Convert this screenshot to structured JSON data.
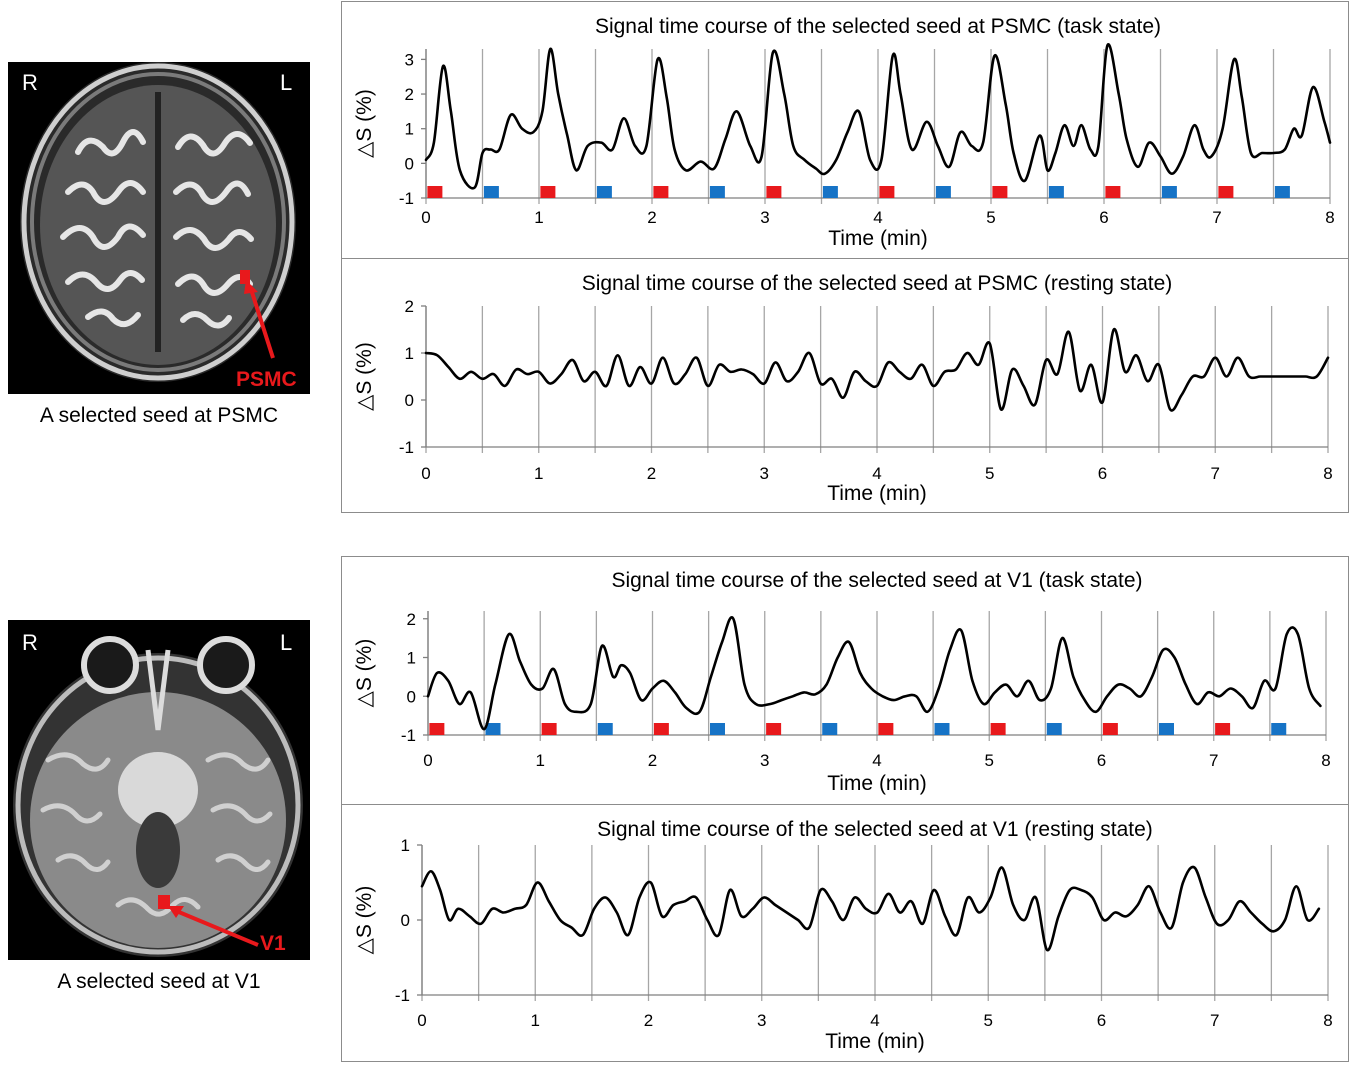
{
  "seeds": [
    {
      "caption": "A selected seed at PSMC",
      "seed_label": "PSMC",
      "orient_left": "R",
      "orient_right": "L",
      "seed_color": "#e8191c"
    },
    {
      "caption": "A selected seed at V1",
      "seed_label": "V1",
      "orient_left": "R",
      "orient_right": "L",
      "seed_color": "#e8191c"
    }
  ],
  "colors": {
    "line": "#000000",
    "grid": "#a6a6a6",
    "block_red": "#e8191c",
    "block_blue": "#1673c6",
    "frame": "#8c8c8c"
  },
  "chart_data": [
    {
      "type": "line",
      "title": "Signal time course of the selected seed at PSMC (task state)",
      "xlabel": "Time (min)",
      "ylabel": "△S (%)",
      "xlim": [
        0,
        8
      ],
      "ylim": [
        -1,
        3.3
      ],
      "xticks": [
        0,
        1,
        2,
        3,
        4,
        5,
        6,
        7,
        8
      ],
      "yticks": [
        -1,
        0,
        1,
        2,
        3
      ],
      "gridlines_x": [
        0,
        0.5,
        1,
        1.5,
        2,
        2.5,
        3,
        3.5,
        4,
        4.5,
        5,
        5.5,
        6,
        6.5,
        7,
        7.5,
        8
      ],
      "blocks": [
        {
          "t": 0.03,
          "cond": "red"
        },
        {
          "t": 0.53,
          "cond": "blue"
        },
        {
          "t": 1.03,
          "cond": "red"
        },
        {
          "t": 1.53,
          "cond": "blue"
        },
        {
          "t": 2.03,
          "cond": "red"
        },
        {
          "t": 2.53,
          "cond": "blue"
        },
        {
          "t": 3.03,
          "cond": "red"
        },
        {
          "t": 3.53,
          "cond": "blue"
        },
        {
          "t": 4.03,
          "cond": "red"
        },
        {
          "t": 4.53,
          "cond": "blue"
        },
        {
          "t": 5.03,
          "cond": "red"
        },
        {
          "t": 5.53,
          "cond": "blue"
        },
        {
          "t": 6.03,
          "cond": "red"
        },
        {
          "t": 6.53,
          "cond": "blue"
        },
        {
          "t": 7.03,
          "cond": "red"
        },
        {
          "t": 7.53,
          "cond": "blue"
        }
      ],
      "series": [
        {
          "name": "PSMC task",
          "x": [
            0,
            0.07,
            0.15,
            0.22,
            0.3,
            0.43,
            0.5,
            0.57,
            0.65,
            0.75,
            0.85,
            0.95,
            1.03,
            1.1,
            1.17,
            1.25,
            1.33,
            1.43,
            1.55,
            1.65,
            1.75,
            1.85,
            1.95,
            2.05,
            2.13,
            2.2,
            2.3,
            2.43,
            2.55,
            2.65,
            2.75,
            2.87,
            2.97,
            3.07,
            3.17,
            3.25,
            3.35,
            3.45,
            3.53,
            3.63,
            3.73,
            3.83,
            3.93,
            4.03,
            4.13,
            4.2,
            4.3,
            4.43,
            4.53,
            4.63,
            4.73,
            4.83,
            4.93,
            5.03,
            5.13,
            5.2,
            5.3,
            5.43,
            5.5,
            5.57,
            5.65,
            5.73,
            5.8,
            5.88,
            5.95,
            6.03,
            6.13,
            6.2,
            6.3,
            6.4,
            6.5,
            6.6,
            6.7,
            6.8,
            6.88,
            6.95,
            7.05,
            7.15,
            7.22,
            7.3,
            7.4,
            7.5,
            7.6,
            7.68,
            7.75,
            7.85,
            7.95,
            8.0
          ],
          "y": [
            0.1,
            0.6,
            2.8,
            1.5,
            -0.2,
            -0.7,
            0.3,
            0.4,
            0.4,
            1.4,
            1.0,
            0.9,
            1.5,
            3.3,
            2.0,
            0.8,
            -0.2,
            0.5,
            0.6,
            0.4,
            1.3,
            0.5,
            0.5,
            3.0,
            1.9,
            0.4,
            -0.2,
            0.05,
            -0.15,
            0.7,
            1.5,
            0.5,
            0.2,
            3.2,
            2.0,
            0.5,
            0.1,
            -0.15,
            -0.3,
            0.1,
            0.9,
            1.5,
            0.1,
            0.1,
            3.1,
            2.0,
            0.4,
            1.2,
            0.5,
            -0.1,
            0.9,
            0.5,
            0.6,
            3.1,
            1.7,
            0.3,
            -0.5,
            0.8,
            -0.2,
            0.3,
            1.1,
            0.5,
            1.1,
            0.4,
            0.5,
            3.4,
            2.0,
            0.7,
            -0.1,
            0.6,
            0.2,
            -0.3,
            0.2,
            1.1,
            0.4,
            0.2,
            1.0,
            3.0,
            1.9,
            0.3,
            0.3,
            0.3,
            0.4,
            1.0,
            0.8,
            2.2,
            1.2,
            0.6
          ]
        }
      ]
    },
    {
      "type": "line",
      "title": "Signal time course of the selected seed at PSMC (resting state)",
      "xlabel": "Time (min)",
      "ylabel": "△S (%)",
      "xlim": [
        0,
        8
      ],
      "ylim": [
        -1,
        2
      ],
      "xticks": [
        0,
        1,
        2,
        3,
        4,
        5,
        6,
        7,
        8
      ],
      "yticks": [
        -1,
        0,
        1,
        2
      ],
      "gridlines_x": [
        0,
        0.5,
        1,
        1.5,
        2,
        2.5,
        3,
        3.5,
        4,
        4.5,
        5,
        5.5,
        6,
        6.5,
        7,
        7.5,
        8
      ],
      "blocks": [],
      "series": [
        {
          "name": "PSMC rest",
          "x": [
            0,
            0.1,
            0.2,
            0.3,
            0.4,
            0.5,
            0.6,
            0.7,
            0.8,
            0.9,
            1.0,
            1.1,
            1.2,
            1.3,
            1.4,
            1.5,
            1.6,
            1.7,
            1.8,
            1.9,
            2.0,
            2.1,
            2.2,
            2.3,
            2.4,
            2.5,
            2.6,
            2.7,
            2.8,
            2.9,
            3.0,
            3.1,
            3.2,
            3.3,
            3.4,
            3.5,
            3.6,
            3.7,
            3.8,
            3.9,
            4.0,
            4.1,
            4.2,
            4.3,
            4.4,
            4.5,
            4.6,
            4.7,
            4.8,
            4.9,
            5.0,
            5.1,
            5.2,
            5.3,
            5.4,
            5.5,
            5.6,
            5.7,
            5.8,
            5.9,
            6.0,
            6.1,
            6.2,
            6.3,
            6.4,
            6.5,
            6.6,
            6.7,
            6.8,
            6.9,
            7.0,
            7.1,
            7.2,
            7.3,
            7.4,
            7.5,
            7.6,
            7.7,
            7.8,
            7.9,
            8.0
          ],
          "y": [
            1.0,
            0.95,
            0.7,
            0.45,
            0.6,
            0.45,
            0.55,
            0.3,
            0.65,
            0.55,
            0.6,
            0.35,
            0.55,
            0.85,
            0.4,
            0.6,
            0.3,
            0.95,
            0.3,
            0.7,
            0.35,
            0.9,
            0.35,
            0.55,
            0.9,
            0.3,
            0.75,
            0.6,
            0.65,
            0.55,
            0.35,
            0.8,
            0.4,
            0.6,
            1.0,
            0.35,
            0.45,
            0.05,
            0.6,
            0.4,
            0.3,
            0.8,
            0.6,
            0.45,
            0.75,
            0.3,
            0.6,
            0.65,
            1.0,
            0.75,
            1.2,
            -0.2,
            0.65,
            0.3,
            -0.1,
            0.85,
            0.55,
            1.45,
            0.2,
            0.75,
            -0.05,
            1.5,
            0.6,
            0.95,
            0.4,
            0.75,
            -0.2,
            0.1,
            0.5,
            0.5,
            0.9,
            0.5,
            0.9,
            0.5,
            0.5,
            0.5,
            0.5,
            0.5,
            0.5,
            0.5,
            0.9
          ]
        }
      ]
    },
    {
      "type": "line",
      "title": "Signal time course of the selected seed at V1 (task state)",
      "xlabel": "Time (min)",
      "ylabel": "△S (%)",
      "xlim": [
        0,
        8
      ],
      "ylim": [
        -1,
        2.2
      ],
      "xticks": [
        0,
        1,
        2,
        3,
        4,
        5,
        6,
        7,
        8
      ],
      "yticks": [
        -1,
        0,
        1,
        2
      ],
      "gridlines_x": [
        0,
        0.5,
        1,
        1.5,
        2,
        2.5,
        3,
        3.5,
        4,
        4.5,
        5,
        5.5,
        6,
        6.5,
        7,
        7.5,
        8
      ],
      "blocks": [
        {
          "t": 0.03,
          "cond": "red"
        },
        {
          "t": 0.53,
          "cond": "blue"
        },
        {
          "t": 1.03,
          "cond": "red"
        },
        {
          "t": 1.53,
          "cond": "blue"
        },
        {
          "t": 2.03,
          "cond": "red"
        },
        {
          "t": 2.53,
          "cond": "blue"
        },
        {
          "t": 3.03,
          "cond": "red"
        },
        {
          "t": 3.53,
          "cond": "blue"
        },
        {
          "t": 4.03,
          "cond": "red"
        },
        {
          "t": 4.53,
          "cond": "blue"
        },
        {
          "t": 5.03,
          "cond": "red"
        },
        {
          "t": 5.53,
          "cond": "blue"
        },
        {
          "t": 6.03,
          "cond": "red"
        },
        {
          "t": 6.53,
          "cond": "blue"
        },
        {
          "t": 7.03,
          "cond": "red"
        },
        {
          "t": 7.53,
          "cond": "blue"
        }
      ],
      "series": [
        {
          "name": "V1 task",
          "x": [
            0,
            0.08,
            0.18,
            0.28,
            0.38,
            0.5,
            0.6,
            0.72,
            0.82,
            0.92,
            1.02,
            1.12,
            1.22,
            1.32,
            1.45,
            1.55,
            1.65,
            1.72,
            1.8,
            1.9,
            2.0,
            2.1,
            2.2,
            2.3,
            2.42,
            2.52,
            2.62,
            2.72,
            2.82,
            2.92,
            3.05,
            3.15,
            3.25,
            3.35,
            3.45,
            3.55,
            3.65,
            3.75,
            3.85,
            3.95,
            4.05,
            4.15,
            4.25,
            4.35,
            4.45,
            4.55,
            4.65,
            4.75,
            4.85,
            4.95,
            5.05,
            5.15,
            5.25,
            5.35,
            5.45,
            5.55,
            5.65,
            5.75,
            5.85,
            5.95,
            6.05,
            6.15,
            6.25,
            6.35,
            6.45,
            6.55,
            6.65,
            6.75,
            6.85,
            6.95,
            7.05,
            7.15,
            7.25,
            7.35,
            7.45,
            7.55,
            7.65,
            7.75,
            7.85,
            7.95
          ],
          "y": [
            0,
            0.6,
            0.4,
            -0.2,
            0.1,
            -0.85,
            0.3,
            1.6,
            0.9,
            0.3,
            0.2,
            0.7,
            -0.2,
            -0.4,
            -0.2,
            1.3,
            0.5,
            0.8,
            0.6,
            -0.1,
            0.2,
            0.4,
            0.1,
            -0.3,
            -0.4,
            0.5,
            1.4,
            2.0,
            0.3,
            -0.2,
            -0.2,
            -0.1,
            0.0,
            0.1,
            0.05,
            0.3,
            1.0,
            1.4,
            0.6,
            0.2,
            0.0,
            -0.1,
            0.0,
            0.0,
            -0.4,
            0.2,
            1.2,
            1.7,
            0.4,
            -0.2,
            0.1,
            0.3,
            0.0,
            0.4,
            -0.1,
            0.2,
            1.5,
            0.5,
            -0.1,
            -0.4,
            0.0,
            0.3,
            0.2,
            0.0,
            0.5,
            1.2,
            1.0,
            0.3,
            -0.2,
            0.1,
            0.0,
            0.2,
            0.0,
            -0.3,
            0.4,
            0.2,
            1.6,
            1.6,
            0.2,
            -0.25
          ]
        }
      ]
    },
    {
      "type": "line",
      "title": "Signal time course of the selected seed at V1 (resting state)",
      "xlabel": "Time (min)",
      "ylabel": "△S (%)",
      "xlim": [
        0,
        8
      ],
      "ylim": [
        -1,
        1
      ],
      "xticks": [
        0,
        1,
        2,
        3,
        4,
        5,
        6,
        7,
        8
      ],
      "yticks": [
        -1,
        0,
        1
      ],
      "gridlines_x": [
        0,
        0.5,
        1,
        1.5,
        2,
        2.5,
        3,
        3.5,
        4,
        4.5,
        5,
        5.5,
        6,
        6.5,
        7,
        7.5,
        8
      ],
      "blocks": [],
      "series": [
        {
          "name": "V1 rest",
          "x": [
            0,
            0.08,
            0.16,
            0.24,
            0.32,
            0.42,
            0.52,
            0.62,
            0.72,
            0.82,
            0.92,
            1.02,
            1.12,
            1.22,
            1.32,
            1.42,
            1.52,
            1.62,
            1.72,
            1.82,
            1.92,
            2.02,
            2.12,
            2.22,
            2.32,
            2.42,
            2.52,
            2.62,
            2.72,
            2.82,
            2.92,
            3.02,
            3.12,
            3.22,
            3.32,
            3.42,
            3.52,
            3.62,
            3.72,
            3.82,
            3.92,
            4.02,
            4.12,
            4.22,
            4.32,
            4.42,
            4.52,
            4.62,
            4.72,
            4.82,
            4.92,
            5.02,
            5.12,
            5.22,
            5.32,
            5.42,
            5.52,
            5.62,
            5.72,
            5.82,
            5.92,
            6.02,
            6.12,
            6.22,
            6.32,
            6.42,
            6.52,
            6.62,
            6.72,
            6.82,
            6.92,
            7.02,
            7.12,
            7.22,
            7.32,
            7.42,
            7.52,
            7.62,
            7.72,
            7.82,
            7.92
          ],
          "y": [
            0.45,
            0.65,
            0.4,
            0.0,
            0.15,
            0.05,
            -0.05,
            0.15,
            0.1,
            0.15,
            0.2,
            0.5,
            0.25,
            0.0,
            -0.1,
            -0.2,
            0.15,
            0.3,
            0.1,
            -0.2,
            0.3,
            0.5,
            0.05,
            0.2,
            0.25,
            0.3,
            0.0,
            -0.2,
            0.4,
            0.05,
            0.15,
            0.3,
            0.2,
            0.1,
            0.0,
            -0.1,
            0.4,
            0.25,
            0.0,
            0.3,
            0.15,
            0.1,
            0.35,
            0.1,
            0.25,
            -0.05,
            0.4,
            0.05,
            -0.2,
            0.3,
            0.1,
            0.3,
            0.7,
            0.2,
            0.0,
            0.3,
            -0.4,
            0.05,
            0.4,
            0.4,
            0.3,
            0.0,
            0.1,
            0.05,
            0.2,
            0.45,
            0.1,
            -0.1,
            0.5,
            0.7,
            0.3,
            -0.05,
            0.0,
            0.25,
            0.1,
            -0.05,
            -0.15,
            0.0,
            0.45,
            0.0,
            0.15
          ]
        }
      ]
    }
  ]
}
